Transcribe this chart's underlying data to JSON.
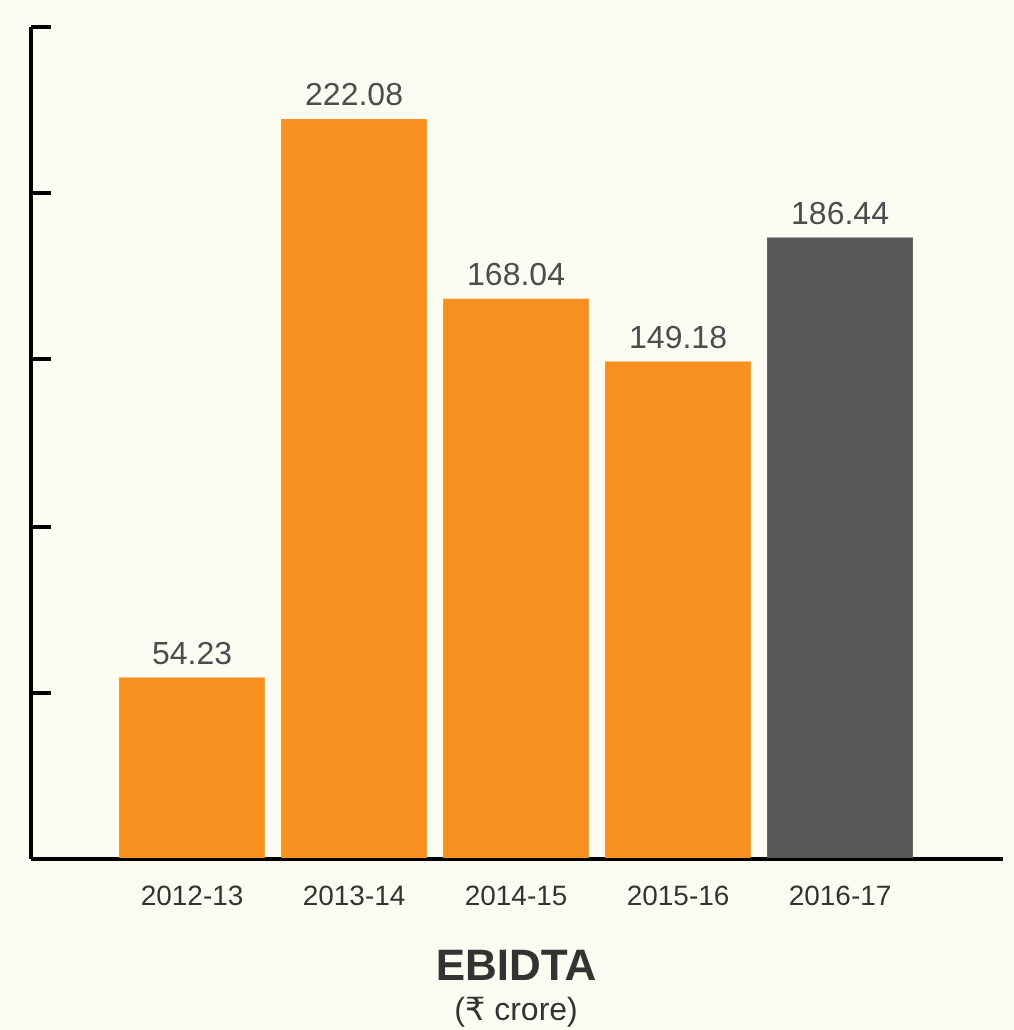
{
  "chart_data": {
    "type": "bar",
    "title": "EBIDTA",
    "subtitle": "(₹ crore)",
    "categories": [
      "2012-13",
      "2013-14",
      "2014-15",
      "2015-16",
      "2016-17"
    ],
    "values": [
      54.23,
      222.08,
      168.04,
      149.18,
      186.44
    ],
    "colors": [
      "#f7901e",
      "#f7901e",
      "#f7901e",
      "#f7901e",
      "#58595b"
    ],
    "ylim": [
      0,
      250
    ],
    "yticks": [
      {
        "value": 0,
        "label": null
      },
      {
        "value": 50,
        "label": null
      },
      {
        "value": 100,
        "label": null
      },
      {
        "value": 150,
        "label": null
      },
      {
        "value": 200,
        "label": null
      },
      {
        "value": 250,
        "label": null
      }
    ],
    "tick_labels": "x",
    "data_labels": true
  }
}
